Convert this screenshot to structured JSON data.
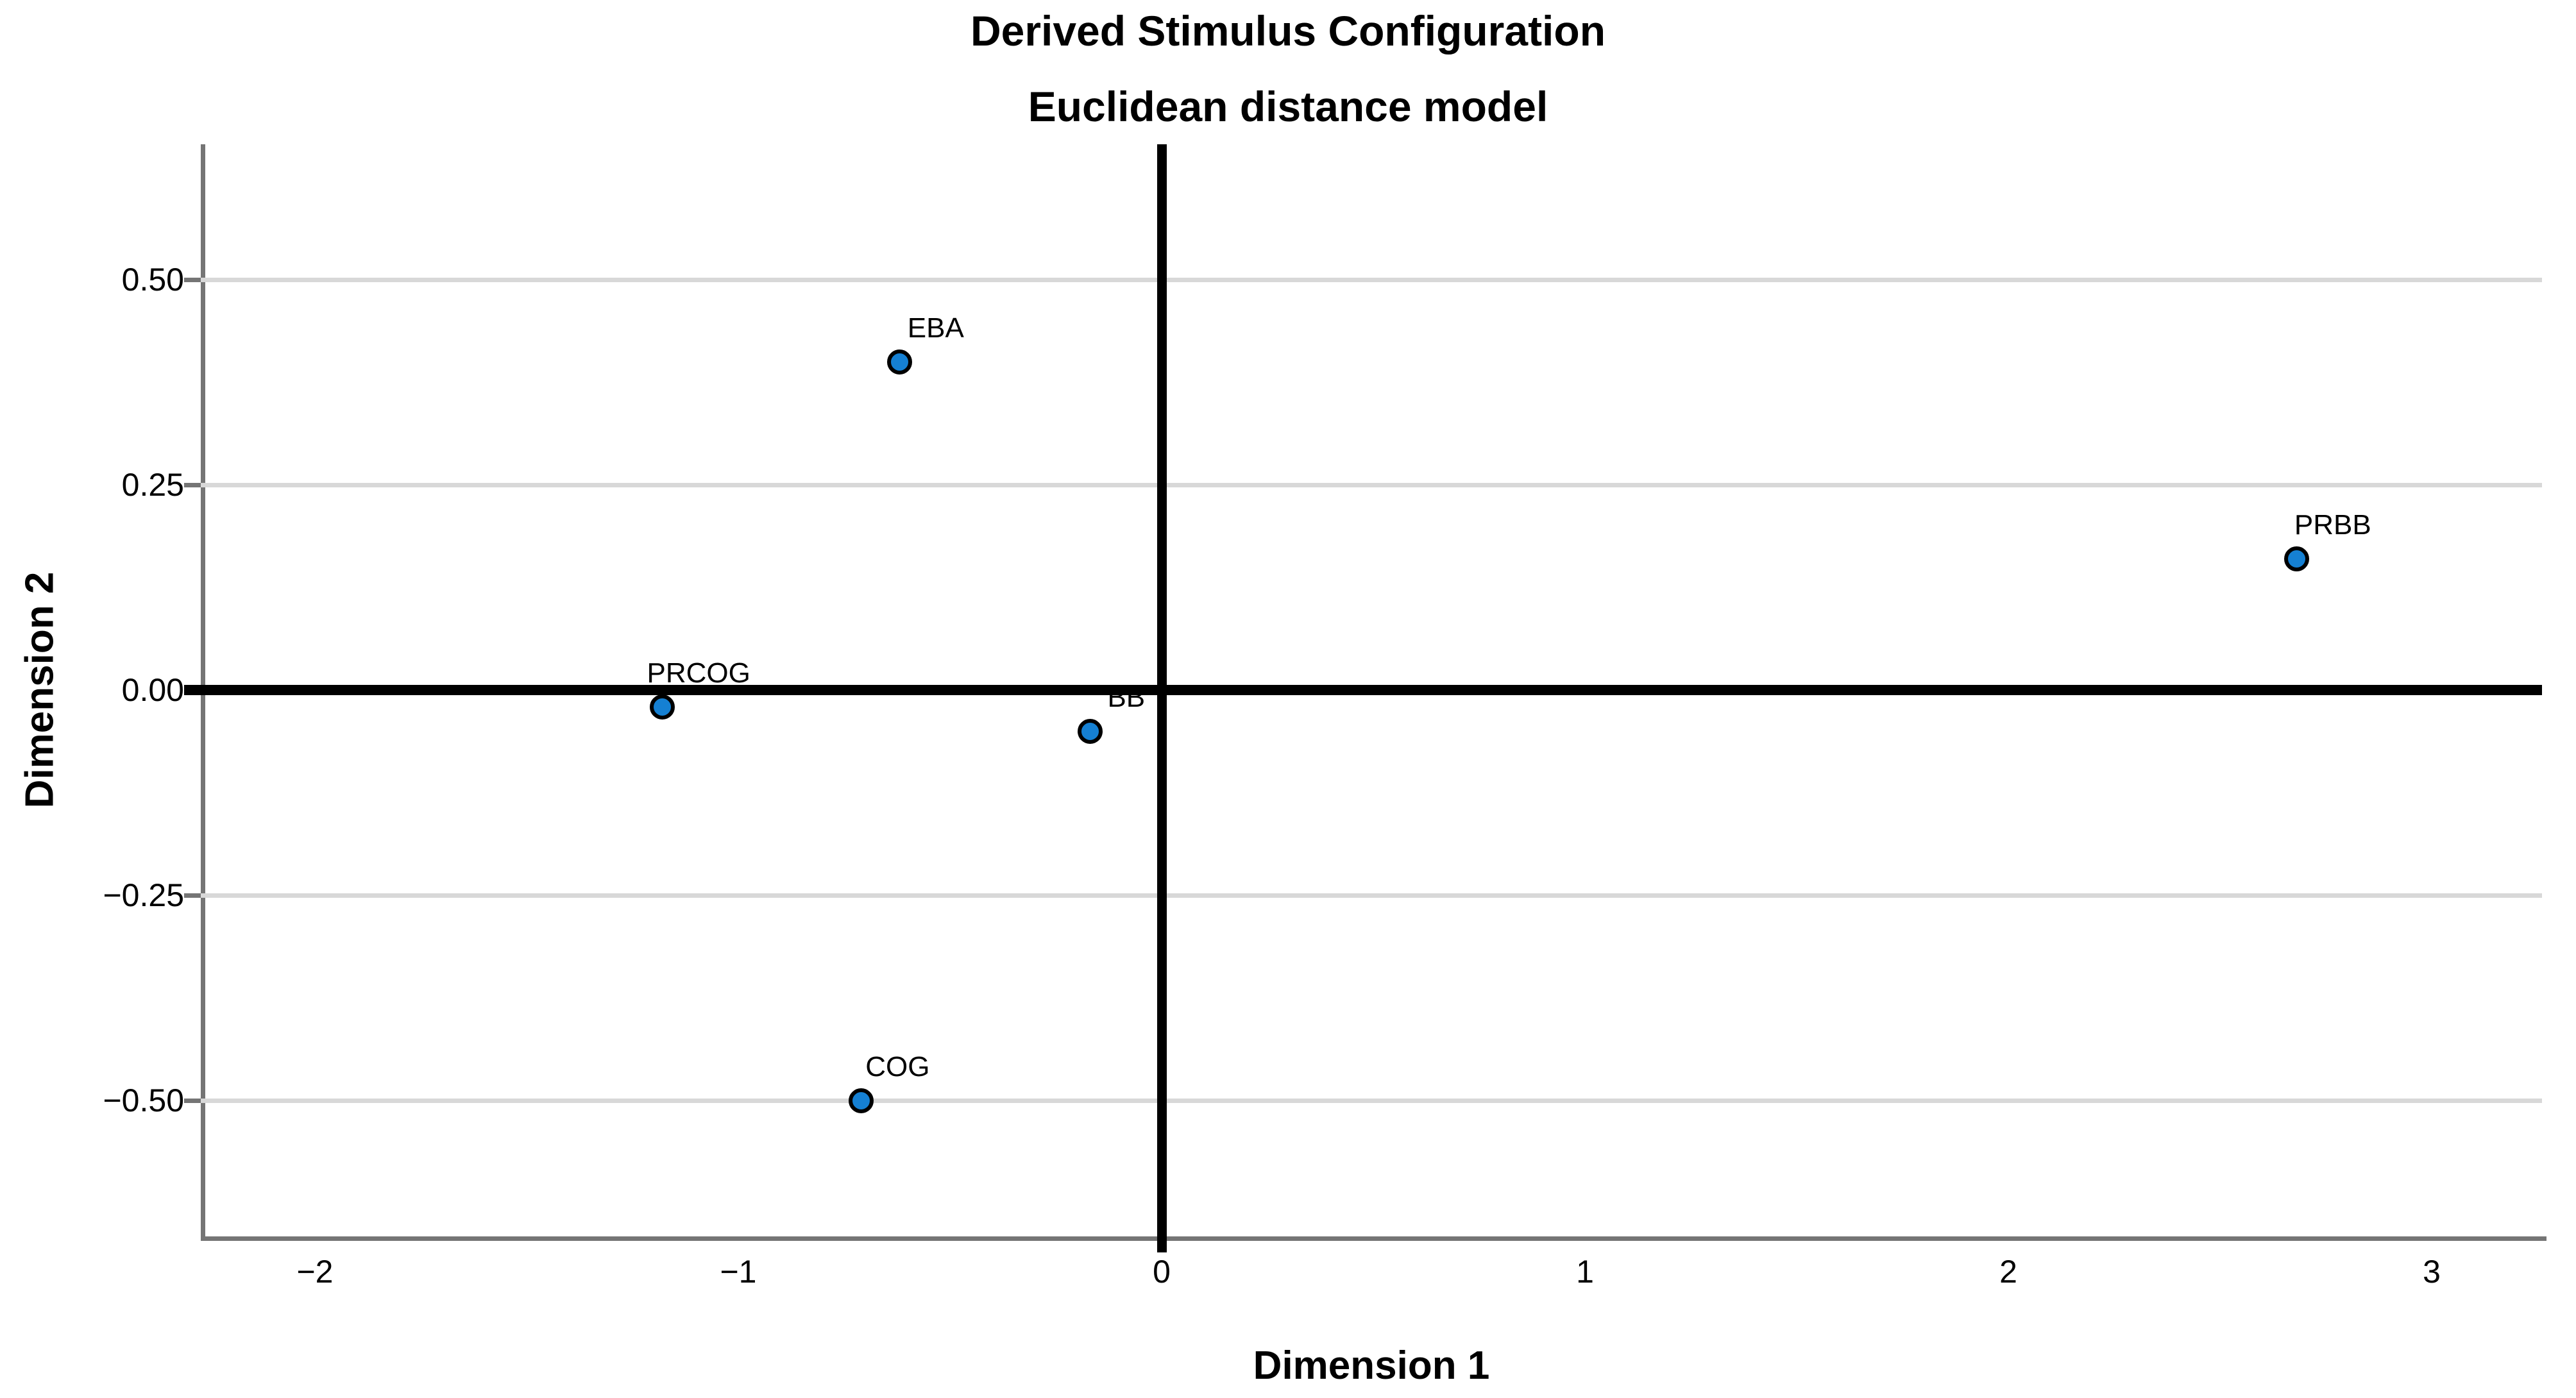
{
  "header": {
    "title": "Derived Stimulus Configuration",
    "subtitle": "Euclidean distance model"
  },
  "colors": {
    "marker_fill": "#1580d3",
    "marker_stroke": "#000000",
    "gridline": "#d8d8d8",
    "frame": "#757575",
    "zero_axis": "#000000",
    "background": "#ffffff",
    "text": "#000000"
  },
  "chart_data": {
    "type": "scatter",
    "title": "Derived Stimulus Configuration",
    "subtitle": "Euclidean distance model",
    "xlabel": "Dimension 1",
    "ylabel": "Dimension 2",
    "xlim": [
      -2.27,
      3.26
    ],
    "ylim": [
      -0.67,
      0.67
    ],
    "x_ticks": [
      {
        "value": -2,
        "label": "−2"
      },
      {
        "value": -1,
        "label": "−1"
      },
      {
        "value": 0,
        "label": "0"
      },
      {
        "value": 1,
        "label": "1"
      },
      {
        "value": 2,
        "label": "2"
      },
      {
        "value": 3,
        "label": "3"
      }
    ],
    "y_ticks": [
      {
        "value": 0.5,
        "label": "0.50"
      },
      {
        "value": 0.25,
        "label": "0.25"
      },
      {
        "value": 0.0,
        "label": "0.00"
      },
      {
        "value": -0.25,
        "label": "−0.25"
      },
      {
        "value": -0.5,
        "label": "−0.50"
      }
    ],
    "grid": "horizontal-only",
    "legend": "none",
    "zero_reference_lines": true,
    "points": [
      {
        "label": "EBA",
        "x": -0.62,
        "y": 0.4
      },
      {
        "label": "PRBB",
        "x": 2.68,
        "y": 0.16
      },
      {
        "label": "PRCOG",
        "x": -1.18,
        "y": -0.02
      },
      {
        "label": "BB",
        "x": -0.17,
        "y": -0.05
      },
      {
        "label": "COG",
        "x": -0.71,
        "y": -0.5
      }
    ]
  }
}
